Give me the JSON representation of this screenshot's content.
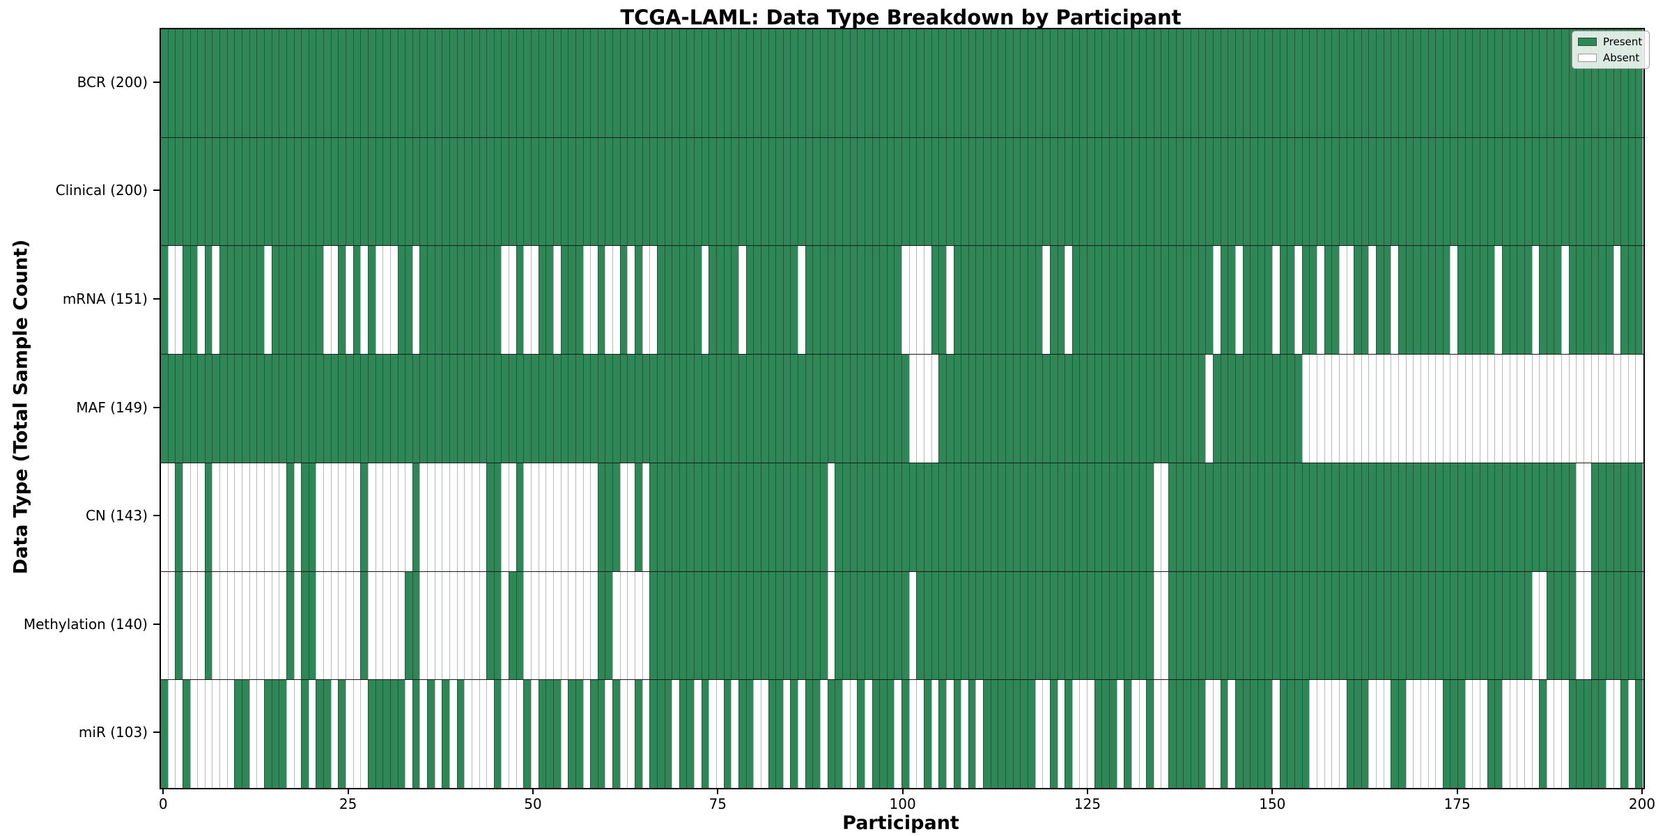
{
  "chart_data": {
    "type": "heatmap",
    "title": "TCGA-LAML: Data Type Breakdown by Participant",
    "xlabel": "Participant",
    "ylabel": "Data Type (Total Sample Count)",
    "n_participants": 200,
    "x_ticks": [
      0,
      25,
      50,
      75,
      100,
      125,
      150,
      175,
      200
    ],
    "x_range": [
      -0.5,
      200
    ],
    "grid": false,
    "legend_position": "upper right",
    "colors": {
      "present": "#2f8757",
      "present_edge": "#1e5a37",
      "absent": "#ffffff",
      "absent_edge": "#b7bbb7"
    },
    "legend": [
      {
        "label": "Present",
        "color": "#2f8757"
      },
      {
        "label": "Absent",
        "color": "#ffffff"
      }
    ],
    "cell_values": {
      "present": 1,
      "absent": 0
    },
    "rows": [
      {
        "name": "BCR",
        "label": "BCR (200)",
        "total_sample_count": 200,
        "absent": []
      },
      {
        "name": "Clinical",
        "label": "Clinical (200)",
        "total_sample_count": 200,
        "absent": []
      },
      {
        "name": "mRNA",
        "label": "mRNA (151)",
        "total_sample_count": 151,
        "absent": [
          1,
          2,
          5,
          7,
          14,
          22,
          23,
          25,
          27,
          29,
          30,
          31,
          34,
          46,
          47,
          49,
          50,
          53,
          57,
          58,
          60,
          61,
          63,
          65,
          66,
          73,
          78,
          86,
          100,
          101,
          102,
          103,
          106,
          119,
          122,
          142,
          145,
          150,
          153,
          156,
          159,
          160,
          163,
          166,
          174,
          180,
          185,
          189,
          196
        ]
      },
      {
        "name": "MAF",
        "label": "MAF (149)",
        "total_sample_count": 149,
        "absent": [
          101,
          102,
          103,
          104,
          141,
          154,
          155,
          156,
          157,
          158,
          159,
          160,
          161,
          162,
          163,
          164,
          165,
          166,
          167,
          168,
          169,
          170,
          171,
          172,
          173,
          174,
          175,
          176,
          177,
          178,
          179,
          180,
          181,
          182,
          183,
          184,
          185,
          186,
          187,
          188,
          189,
          190,
          191,
          192,
          193,
          194,
          195,
          196,
          197,
          198,
          199
        ]
      },
      {
        "name": "CN",
        "label": "CN (143)",
        "total_sample_count": 143,
        "absent": [
          0,
          1,
          3,
          4,
          5,
          7,
          8,
          9,
          10,
          11,
          12,
          13,
          14,
          15,
          16,
          18,
          21,
          22,
          23,
          24,
          25,
          26,
          28,
          29,
          30,
          31,
          32,
          33,
          35,
          36,
          37,
          38,
          39,
          40,
          41,
          42,
          43,
          46,
          47,
          49,
          50,
          51,
          52,
          53,
          54,
          55,
          56,
          57,
          58,
          62,
          63,
          65,
          90,
          134,
          135,
          191,
          192
        ]
      },
      {
        "name": "Methylation",
        "label": "Methylation (140)",
        "total_sample_count": 140,
        "absent": [
          0,
          1,
          3,
          4,
          5,
          7,
          8,
          9,
          10,
          11,
          12,
          13,
          14,
          15,
          16,
          18,
          21,
          22,
          23,
          24,
          25,
          26,
          28,
          29,
          30,
          31,
          32,
          35,
          36,
          37,
          38,
          39,
          40,
          41,
          42,
          43,
          46,
          49,
          50,
          51,
          52,
          53,
          54,
          55,
          56,
          57,
          58,
          61,
          62,
          63,
          64,
          65,
          90,
          101,
          134,
          135,
          185,
          186,
          191,
          192
        ]
      },
      {
        "name": "miR",
        "label": "miR (103)",
        "total_sample_count": 103,
        "absent": [
          1,
          2,
          4,
          5,
          6,
          7,
          8,
          9,
          12,
          13,
          17,
          18,
          20,
          23,
          25,
          26,
          27,
          33,
          35,
          37,
          39,
          41,
          42,
          43,
          44,
          46,
          47,
          48,
          50,
          54,
          57,
          60,
          62,
          63,
          65,
          69,
          72,
          74,
          75,
          77,
          80,
          81,
          84,
          86,
          89,
          92,
          93,
          95,
          99,
          101,
          102,
          104,
          106,
          108,
          110,
          118,
          119,
          121,
          123,
          124,
          125,
          129,
          131,
          132,
          134,
          135,
          141,
          142,
          144,
          150,
          155,
          156,
          157,
          158,
          159,
          163,
          164,
          165,
          168,
          169,
          170,
          171,
          172,
          176,
          177,
          178,
          181,
          182,
          183,
          184,
          185,
          187,
          188,
          189,
          195,
          196,
          198
        ]
      }
    ]
  }
}
